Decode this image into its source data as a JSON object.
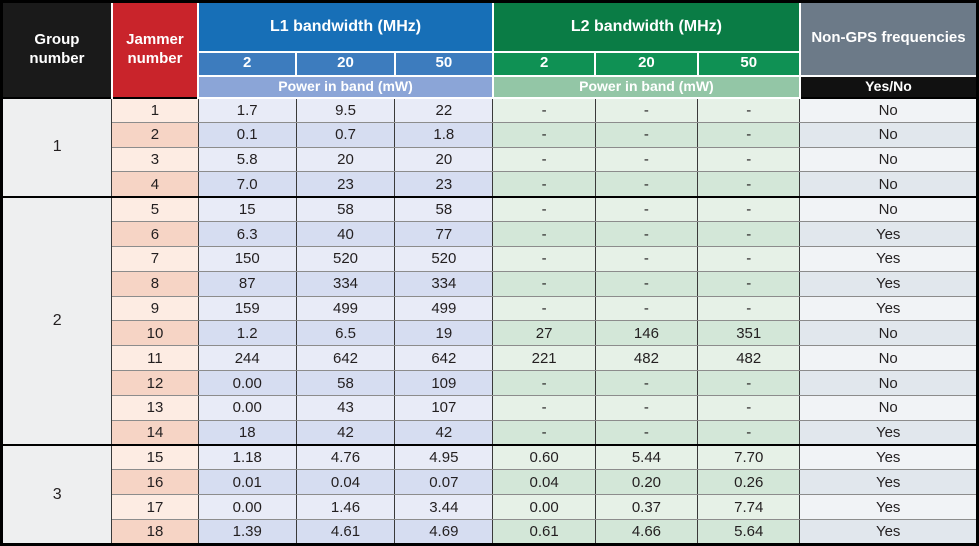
{
  "table": {
    "header": {
      "group_title": "Group number",
      "jammer_title": "Jammer number",
      "l1_title": "L1 bandwidth  (MHz)",
      "l2_title": "L2 bandwidth  (MHz)",
      "bandwidth_cols": [
        "2",
        "20",
        "50"
      ],
      "l1_power_label": "Power in band (mW)",
      "l2_power_label": "Power in band (mW)",
      "nongps_title": "Non-GPS frequencies",
      "yesno_label": "Yes/No"
    },
    "groups": [
      {
        "number": "1",
        "rows": [
          {
            "jammer": "1",
            "l1": [
              "1.7",
              "9.5",
              "22"
            ],
            "l2": [
              "-",
              "-",
              "-"
            ],
            "nongps": "No"
          },
          {
            "jammer": "2",
            "l1": [
              "0.1",
              "0.7",
              "1.8"
            ],
            "l2": [
              "-",
              "-",
              "-"
            ],
            "nongps": "No"
          },
          {
            "jammer": "3",
            "l1": [
              "5.8",
              "20",
              "20"
            ],
            "l2": [
              "-",
              "-",
              "-"
            ],
            "nongps": "No"
          },
          {
            "jammer": "4",
            "l1": [
              "7.0",
              "23",
              "23"
            ],
            "l2": [
              "-",
              "-",
              "-"
            ],
            "nongps": "No"
          }
        ]
      },
      {
        "number": "2",
        "rows": [
          {
            "jammer": "5",
            "l1": [
              "15",
              "58",
              "58"
            ],
            "l2": [
              "-",
              "-",
              "-"
            ],
            "nongps": "No"
          },
          {
            "jammer": "6",
            "l1": [
              "6.3",
              "40",
              "77"
            ],
            "l2": [
              "-",
              "-",
              "-"
            ],
            "nongps": "Yes"
          },
          {
            "jammer": "7",
            "l1": [
              "150",
              "520",
              "520"
            ],
            "l2": [
              "-",
              "-",
              "-"
            ],
            "nongps": "Yes"
          },
          {
            "jammer": "8",
            "l1": [
              "87",
              "334",
              "334"
            ],
            "l2": [
              "-",
              "-",
              "-"
            ],
            "nongps": "Yes"
          },
          {
            "jammer": "9",
            "l1": [
              "159",
              "499",
              "499"
            ],
            "l2": [
              "-",
              "-",
              "-"
            ],
            "nongps": "Yes"
          },
          {
            "jammer": "10",
            "l1": [
              "1.2",
              "6.5",
              "19"
            ],
            "l2": [
              "27",
              "146",
              "351"
            ],
            "nongps": "No"
          },
          {
            "jammer": "11",
            "l1": [
              "244",
              "642",
              "642"
            ],
            "l2": [
              "221",
              "482",
              "482"
            ],
            "nongps": "No"
          },
          {
            "jammer": "12",
            "l1": [
              "0.00",
              "58",
              "109"
            ],
            "l2": [
              "-",
              "-",
              "-"
            ],
            "nongps": "No"
          },
          {
            "jammer": "13",
            "l1": [
              "0.00",
              "43",
              "107"
            ],
            "l2": [
              "-",
              "-",
              "-"
            ],
            "nongps": "No"
          },
          {
            "jammer": "14",
            "l1": [
              "18",
              "42",
              "42"
            ],
            "l2": [
              "-",
              "-",
              "-"
            ],
            "nongps": "Yes"
          }
        ]
      },
      {
        "number": "3",
        "rows": [
          {
            "jammer": "15",
            "l1": [
              "1.18",
              "4.76",
              "4.95"
            ],
            "l2": [
              "0.60",
              "5.44",
              "7.70"
            ],
            "nongps": "Yes"
          },
          {
            "jammer": "16",
            "l1": [
              "0.01",
              "0.04",
              "0.07"
            ],
            "l2": [
              "0.04",
              "0.20",
              "0.26"
            ],
            "nongps": "Yes"
          },
          {
            "jammer": "17",
            "l1": [
              "0.00",
              "1.46",
              "3.44"
            ],
            "l2": [
              "0.00",
              "0.37",
              "7.74"
            ],
            "nongps": "Yes"
          },
          {
            "jammer": "18",
            "l1": [
              "1.39",
              "4.61",
              "4.69"
            ],
            "l2": [
              "0.61",
              "4.66",
              "5.64"
            ],
            "nongps": "Yes"
          }
        ]
      }
    ]
  },
  "colors": {
    "header_black": "#1a1a1a",
    "header_red": "#c9242b",
    "l1_blue": "#176fb7",
    "l1_sub_blue": "#3d7cbe",
    "l1_power_blue": "#8ba5d7",
    "l2_green": "#0a7c45",
    "l2_sub_green": "#0f9154",
    "l2_power_green": "#93c6a6",
    "nongps_slate": "#6c7a88"
  }
}
